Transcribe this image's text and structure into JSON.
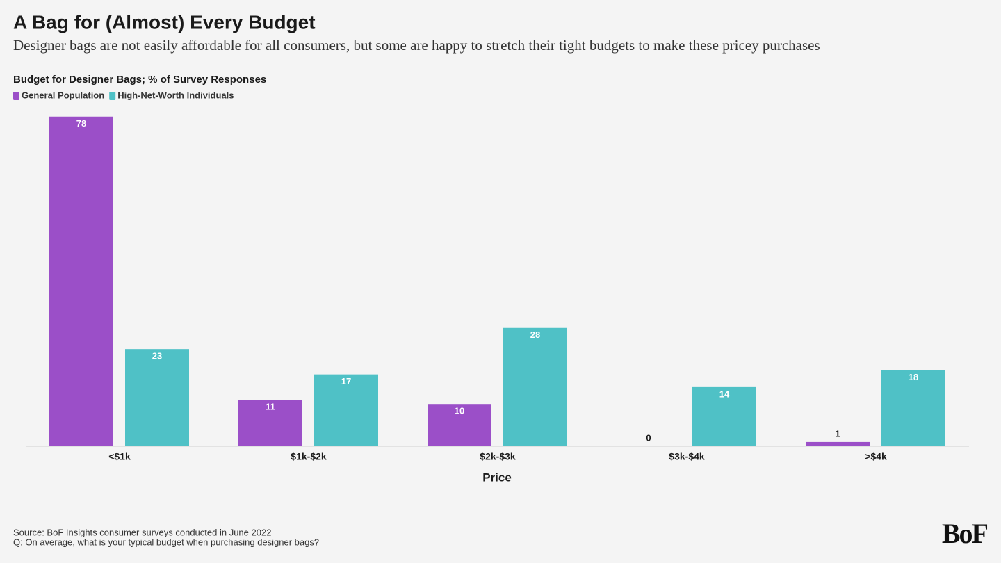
{
  "chart_data": {
    "type": "bar",
    "title": "A Bag for (Almost) Every Budget",
    "subtitle": "Designer bags are not easily affordable for all consumers, but some are happy to stretch their tight budgets to make these pricey purchases",
    "chart_label": "Budget for Designer Bags; % of Survey Responses",
    "xlabel": "Price",
    "categories": [
      "<$1k",
      "$1k-$2k",
      "$2k-$3k",
      "$3k-$4k",
      ">$4k"
    ],
    "series": [
      {
        "name": "General Population",
        "color": "#9b4fc8",
        "values": [
          78,
          11,
          10,
          0,
          1
        ]
      },
      {
        "name": "High-Net-Worth Individuals",
        "color": "#4fc1c6",
        "values": [
          23,
          17,
          28,
          14,
          18
        ]
      }
    ],
    "source": "Source: BoF Insights consumer surveys conducted in June 2022",
    "question": "Q: On average, what is your typical budget when purchasing designer bags?",
    "logo": "BoF"
  }
}
